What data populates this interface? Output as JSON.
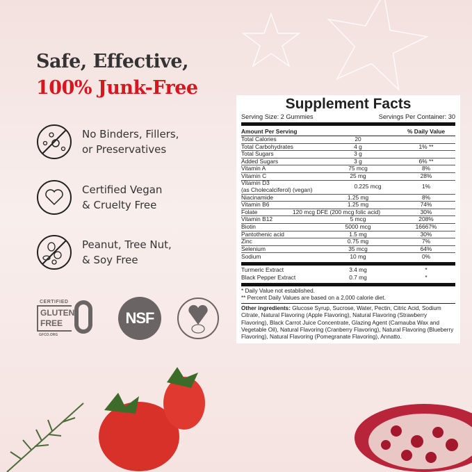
{
  "headline": {
    "line1": "Safe, Effective,",
    "line2": "100% Junk-Free",
    "accent_color": "#d9161f"
  },
  "features": [
    {
      "icon": "no-chemicals-icon",
      "line1": "No Binders, Fillers,",
      "line2": "or Preservatives"
    },
    {
      "icon": "heart-icon",
      "line1": "Certified Vegan",
      "line2": "& Cruelty Free"
    },
    {
      "icon": "no-nuts-icon",
      "line1": "Peanut, Tree Nut,",
      "line2": "& Soy Free"
    }
  ],
  "certifications": {
    "gluten_free": {
      "top": "CERTIFIED",
      "l1": "GLUTEN",
      "l2": "FREE",
      "site": "GFCO.ORG"
    },
    "nsf": "NSF",
    "leaping_bunny": "leaping-bunny-icon"
  },
  "facts": {
    "title": "Supplement Facts",
    "serving_size": "Serving Size: 2 Gummies",
    "servings_per_container": "Servings Per Container: 30",
    "header": {
      "amount": "Amount Per Serving",
      "dv": "% Daily Value"
    },
    "rows": [
      {
        "name": "Total Calories",
        "amount": "20",
        "dv": ""
      },
      {
        "name": "Total Carbohydrates",
        "amount": "4 g",
        "dv": "1% **"
      },
      {
        "name": "Total Sugars",
        "amount": "3 g",
        "dv": ""
      },
      {
        "name": "Added Sugars",
        "amount": "3 g",
        "dv": "6% **"
      },
      {
        "name": "Vitamin A",
        "amount": "75 mcg",
        "dv": "8%"
      },
      {
        "name": "Vitamin C",
        "amount": "25 mg",
        "dv": "28%"
      },
      {
        "name": "Vitamin D3",
        "name2": "(as Cholecalciferol) (vegan)",
        "amount": "0.225 mcg",
        "dv": "1%"
      },
      {
        "name": "Niacinamide",
        "amount": "1.25 mg",
        "dv": "8%"
      },
      {
        "name": "Vitamin B6",
        "amount": "1.25 mg",
        "dv": "74%"
      },
      {
        "name": "Folate",
        "amount": "120 mcg DFE (200 mcg folic acid)",
        "dv": "30%"
      },
      {
        "name": "Vitamin B12",
        "amount": "5 mcg",
        "dv": "208%"
      },
      {
        "name": "Biotin",
        "amount": "5000 mcg",
        "dv": "16667%"
      },
      {
        "name": "Pantothenic acid",
        "amount": "1.5 mg",
        "dv": "30%"
      },
      {
        "name": "Zinc",
        "amount": "0.75 mg",
        "dv": "7%"
      },
      {
        "name": "Selenium",
        "amount": "35 mcg",
        "dv": "64%"
      },
      {
        "name": "Sodium",
        "amount": "10 mg",
        "dv": "0%"
      }
    ],
    "extracts": [
      {
        "name": "Turmeric Extract",
        "amount": "3.4 mg",
        "dv": "*"
      },
      {
        "name": "Black Pepper Extract",
        "amount": "0.7 mg",
        "dv": "*"
      }
    ],
    "footnote1": "* Daily Value not established.",
    "footnote2": "** Percent Daily Values are based on a 2,000 calorie diet.",
    "other_label": "Other ingredients:",
    "other_text": " Glucose Syrup, Sucrose, Water, Pectin, Citric Acid, Sodium Citrate, Natural Flavoring (Apple Flavoring), Natural Flavoring (Strawberry Flavoring), Black Carrot Juice Concentrate, Glazing Agent (Carnauba Wax and Vegetable Oil), Natural Flavoring (Cranberry Flavoring), Natural Flavoring (Blueberry Flavoring), Natural Flavoring (Pomegranate Flavoring), Annatto."
  }
}
